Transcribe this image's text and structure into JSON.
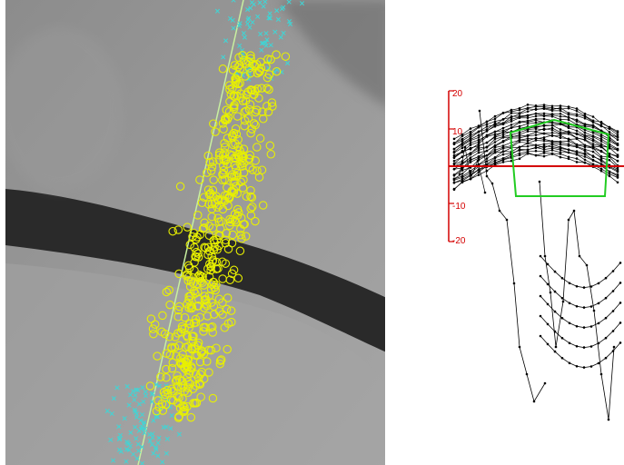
{
  "colors": {
    "background": "#ffffff",
    "circle_markers": "#e8f000",
    "cross_markers": "#3fd6d6",
    "fit_line": "#c8f0a0",
    "axis_red": "#d40000",
    "polygon_green": "#22cc22",
    "profile_lines": "#000000"
  },
  "micrograph": {
    "marker_symbols": {
      "circle": "circle",
      "cross": "x"
    }
  },
  "profile": {
    "y_ticks": [
      "20",
      "10",
      "0",
      "-10",
      "-20"
    ]
  }
}
